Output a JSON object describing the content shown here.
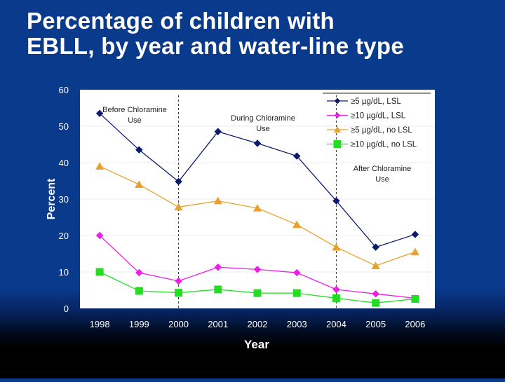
{
  "slide": {
    "title_line1": "Percentage of children with",
    "title_line2": "EBLL, by year and water-line type"
  },
  "chart_data": {
    "type": "line",
    "title": "Percentage of children with EBLL, by year and water-line type",
    "xlabel": "Year",
    "ylabel": "Percent",
    "ylim": [
      0,
      60
    ],
    "yticks": [
      0,
      10,
      20,
      30,
      40,
      50,
      60
    ],
    "categories": [
      "1998",
      "1999",
      "2000",
      "2001",
      "2002",
      "2003",
      "2004",
      "2005",
      "2006"
    ],
    "series": [
      {
        "name": "≥5 µg/dL, LSL",
        "color": "#0d1b6e",
        "marker": "diamond",
        "values": [
          53.5,
          43.5,
          34.8,
          48.5,
          45.3,
          41.8,
          29.5,
          16.8,
          20.3
        ]
      },
      {
        "name": "≥10 µg/dL, LSL",
        "color": "#ee1ee8",
        "marker": "diamond",
        "values": [
          20.0,
          9.8,
          7.5,
          11.3,
          10.7,
          9.8,
          5.2,
          4.0,
          2.8
        ]
      },
      {
        "name": "≥5 µg/dL, no LSL",
        "color": "#e8a22c",
        "marker": "triangle",
        "values": [
          39.0,
          34.0,
          27.8,
          29.5,
          27.5,
          23.0,
          16.8,
          11.7,
          15.5
        ]
      },
      {
        "name": "≥10 µg/dL, no LSL",
        "color": "#22dd22",
        "marker": "square",
        "values": [
          10.0,
          4.8,
          4.3,
          5.2,
          4.2,
          4.2,
          2.8,
          1.5,
          2.6
        ]
      }
    ],
    "annotations": [
      {
        "line1": "Before Chloramine",
        "line2": "Use"
      },
      {
        "line1": "During Chloramine",
        "line2": "Use"
      },
      {
        "line1": "After Chloramine",
        "line2": "Use"
      }
    ],
    "period_boundaries": [
      "2000",
      "2004"
    ],
    "legend_position": "top-right"
  }
}
